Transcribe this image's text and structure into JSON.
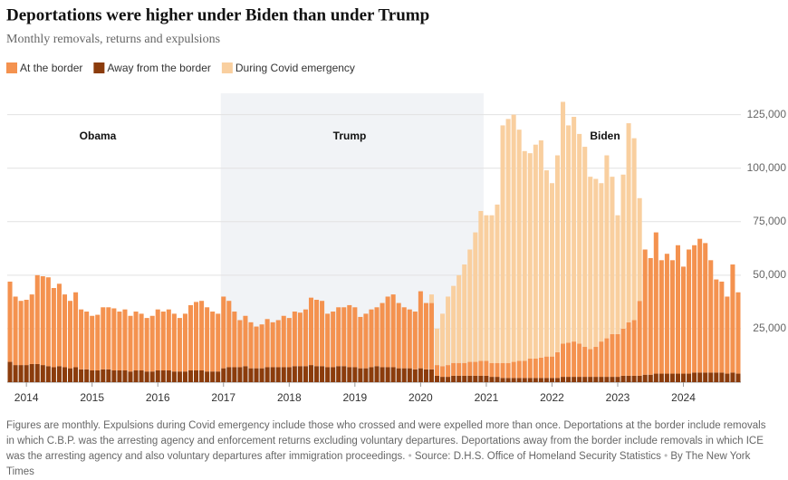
{
  "chart_data": {
    "type": "stacked_bar",
    "title": "Deportations were higher under Biden than under Trump",
    "subtitle": "Monthly removals, returns and expulsions",
    "annotations": [
      "Obama",
      "Trump",
      "Biden"
    ],
    "footnote": "Figures are monthly. Expulsions during Covid emergency include those who crossed and were expelled more than once. Deportations at the border include removals in which C.B.P. was the arresting agency and enforcement returns excluding voluntary departures. Deportations away from the border include removals in which ICE was the arresting agency and also voluntary departures after immigration proceedings.",
    "source": "Source: D.H.S. Office of Homeland Security Statistics",
    "credit": "By The New York Times",
    "categories": [
      null,
      null,
      null,
      "2014",
      null,
      null,
      null,
      null,
      null,
      null,
      null,
      null,
      null,
      null,
      null,
      "2015",
      null,
      null,
      null,
      null,
      null,
      null,
      null,
      null,
      null,
      null,
      null,
      "2016",
      null,
      null,
      null,
      null,
      null,
      null,
      null,
      null,
      null,
      null,
      null,
      "2017",
      null,
      null,
      null,
      null,
      null,
      null,
      null,
      null,
      null,
      null,
      null,
      "2018",
      null,
      null,
      null,
      null,
      null,
      null,
      null,
      null,
      null,
      null,
      null,
      "2019",
      null,
      null,
      null,
      null,
      null,
      null,
      null,
      null,
      null,
      null,
      null,
      "2020",
      null,
      null,
      null,
      null,
      null,
      null,
      null,
      null,
      null,
      null,
      null,
      "2021",
      null,
      null,
      null,
      null,
      null,
      null,
      null,
      null,
      null,
      null,
      null,
      "2022",
      null,
      null,
      null,
      null,
      null,
      null,
      null,
      null,
      null,
      null,
      null,
      "2023",
      null,
      null,
      null,
      null,
      null,
      null,
      null,
      null,
      null,
      null,
      null,
      "2024",
      null,
      null,
      null,
      null,
      null,
      null,
      null,
      null,
      null,
      null
    ],
    "series": [
      {
        "name": "Away from the border",
        "color": "#8b3c0c",
        "values": [
          9500,
          8000,
          8000,
          8000,
          8500,
          8500,
          8000,
          7500,
          7000,
          7500,
          7000,
          6500,
          7000,
          6000,
          6000,
          5500,
          5500,
          6000,
          6000,
          5500,
          5500,
          5500,
          5000,
          5500,
          5500,
          5000,
          5000,
          5500,
          5500,
          5500,
          5000,
          5000,
          5000,
          5500,
          5500,
          5500,
          5000,
          5000,
          5000,
          6500,
          7000,
          7000,
          7000,
          7500,
          6500,
          6500,
          6500,
          7000,
          7000,
          7000,
          7000,
          7000,
          7500,
          7500,
          7500,
          8000,
          7500,
          7500,
          7000,
          7000,
          7500,
          7500,
          7000,
          7000,
          6500,
          6500,
          7000,
          7500,
          7000,
          7000,
          7000,
          6500,
          6500,
          6500,
          6000,
          6500,
          6000,
          6000,
          3000,
          2500,
          2500,
          3000,
          3000,
          3000,
          3000,
          3000,
          3000,
          3000,
          2500,
          2500,
          2000,
          2000,
          2000,
          2000,
          2000,
          2000,
          2000,
          2000,
          2000,
          2000,
          2000,
          2500,
          2500,
          2500,
          2500,
          2500,
          2500,
          2500,
          2500,
          2500,
          2500,
          2500,
          3000,
          3000,
          3000,
          3000,
          3500,
          3500,
          4000,
          4000,
          4000,
          4000,
          4000,
          4000,
          4000,
          4500,
          4500,
          4500,
          4500,
          4500,
          4500,
          4000,
          4500,
          4000
        ]
      },
      {
        "name": "At the border",
        "color": "#f4924f",
        "values": [
          37500,
          32000,
          30000,
          30500,
          32500,
          41500,
          41500,
          41500,
          37000,
          38500,
          34000,
          31500,
          35000,
          28000,
          27000,
          25500,
          26000,
          29000,
          29000,
          29000,
          27500,
          28500,
          26000,
          27500,
          26500,
          25000,
          26000,
          28500,
          27500,
          28500,
          27000,
          25000,
          27000,
          30500,
          32000,
          32500,
          30000,
          28000,
          27000,
          33500,
          31000,
          26000,
          22000,
          23500,
          21500,
          19500,
          20500,
          22500,
          21000,
          22000,
          24000,
          23000,
          25500,
          25000,
          26500,
          31500,
          31000,
          30500,
          25000,
          26000,
          27500,
          27500,
          29000,
          28000,
          24000,
          25500,
          27000,
          27500,
          30000,
          33000,
          34000,
          30500,
          28500,
          27500,
          27000,
          36000,
          31000,
          31000,
          5000,
          5000,
          5500,
          6000,
          6000,
          6000,
          6500,
          6500,
          7000,
          7000,
          6500,
          6500,
          7000,
          7000,
          7500,
          8000,
          8000,
          9000,
          9000,
          9500,
          10000,
          10000,
          12000,
          15500,
          16000,
          16500,
          15500,
          14000,
          13000,
          14000,
          16500,
          18000,
          20000,
          20000,
          22000,
          25000,
          26000,
          35000,
          58500,
          54500,
          66000,
          53000,
          56000,
          53000,
          60000,
          50000,
          58000,
          59500,
          62500,
          60500,
          52500,
          43500,
          42500,
          36000,
          50500,
          38000
        ]
      },
      {
        "name": "During Covid emergency",
        "color": "#f9cf9f",
        "values": [
          null,
          null,
          null,
          null,
          null,
          null,
          null,
          null,
          null,
          null,
          null,
          null,
          null,
          null,
          null,
          null,
          null,
          null,
          null,
          null,
          null,
          null,
          null,
          null,
          null,
          null,
          null,
          null,
          null,
          null,
          null,
          null,
          null,
          null,
          null,
          null,
          null,
          null,
          null,
          null,
          null,
          null,
          null,
          null,
          null,
          null,
          null,
          null,
          null,
          null,
          null,
          null,
          null,
          null,
          null,
          null,
          null,
          null,
          null,
          null,
          null,
          null,
          null,
          null,
          null,
          null,
          null,
          null,
          null,
          null,
          null,
          null,
          null,
          null,
          null,
          null,
          null,
          4000,
          17000,
          24500,
          32000,
          36000,
          41000,
          46000,
          52500,
          60500,
          70000,
          68000,
          69000,
          74000,
          111000,
          114000,
          115500,
          108000,
          98000,
          96000,
          100000,
          101500,
          87000,
          81000,
          92000,
          113000,
          101500,
          105000,
          98000,
          93500,
          80500,
          78500,
          74000,
          85500,
          73500,
          55500,
          72000,
          93000,
          85000,
          48000,
          null,
          null,
          null,
          null,
          null,
          null,
          null,
          null,
          null,
          null,
          null,
          null,
          null,
          null,
          null,
          null,
          null,
          null
        ]
      }
    ],
    "legend_order": [
      1,
      0,
      2
    ],
    "ylim": [
      0,
      135000
    ],
    "yticks": [
      {
        "value": 25000,
        "label": "25,000"
      },
      {
        "value": 50000,
        "label": "50,000"
      },
      {
        "value": 75000,
        "label": "75,000"
      },
      {
        "value": 100000,
        "label": "100,000"
      },
      {
        "value": 125000,
        "label": "125,000"
      }
    ],
    "grid": true
  }
}
